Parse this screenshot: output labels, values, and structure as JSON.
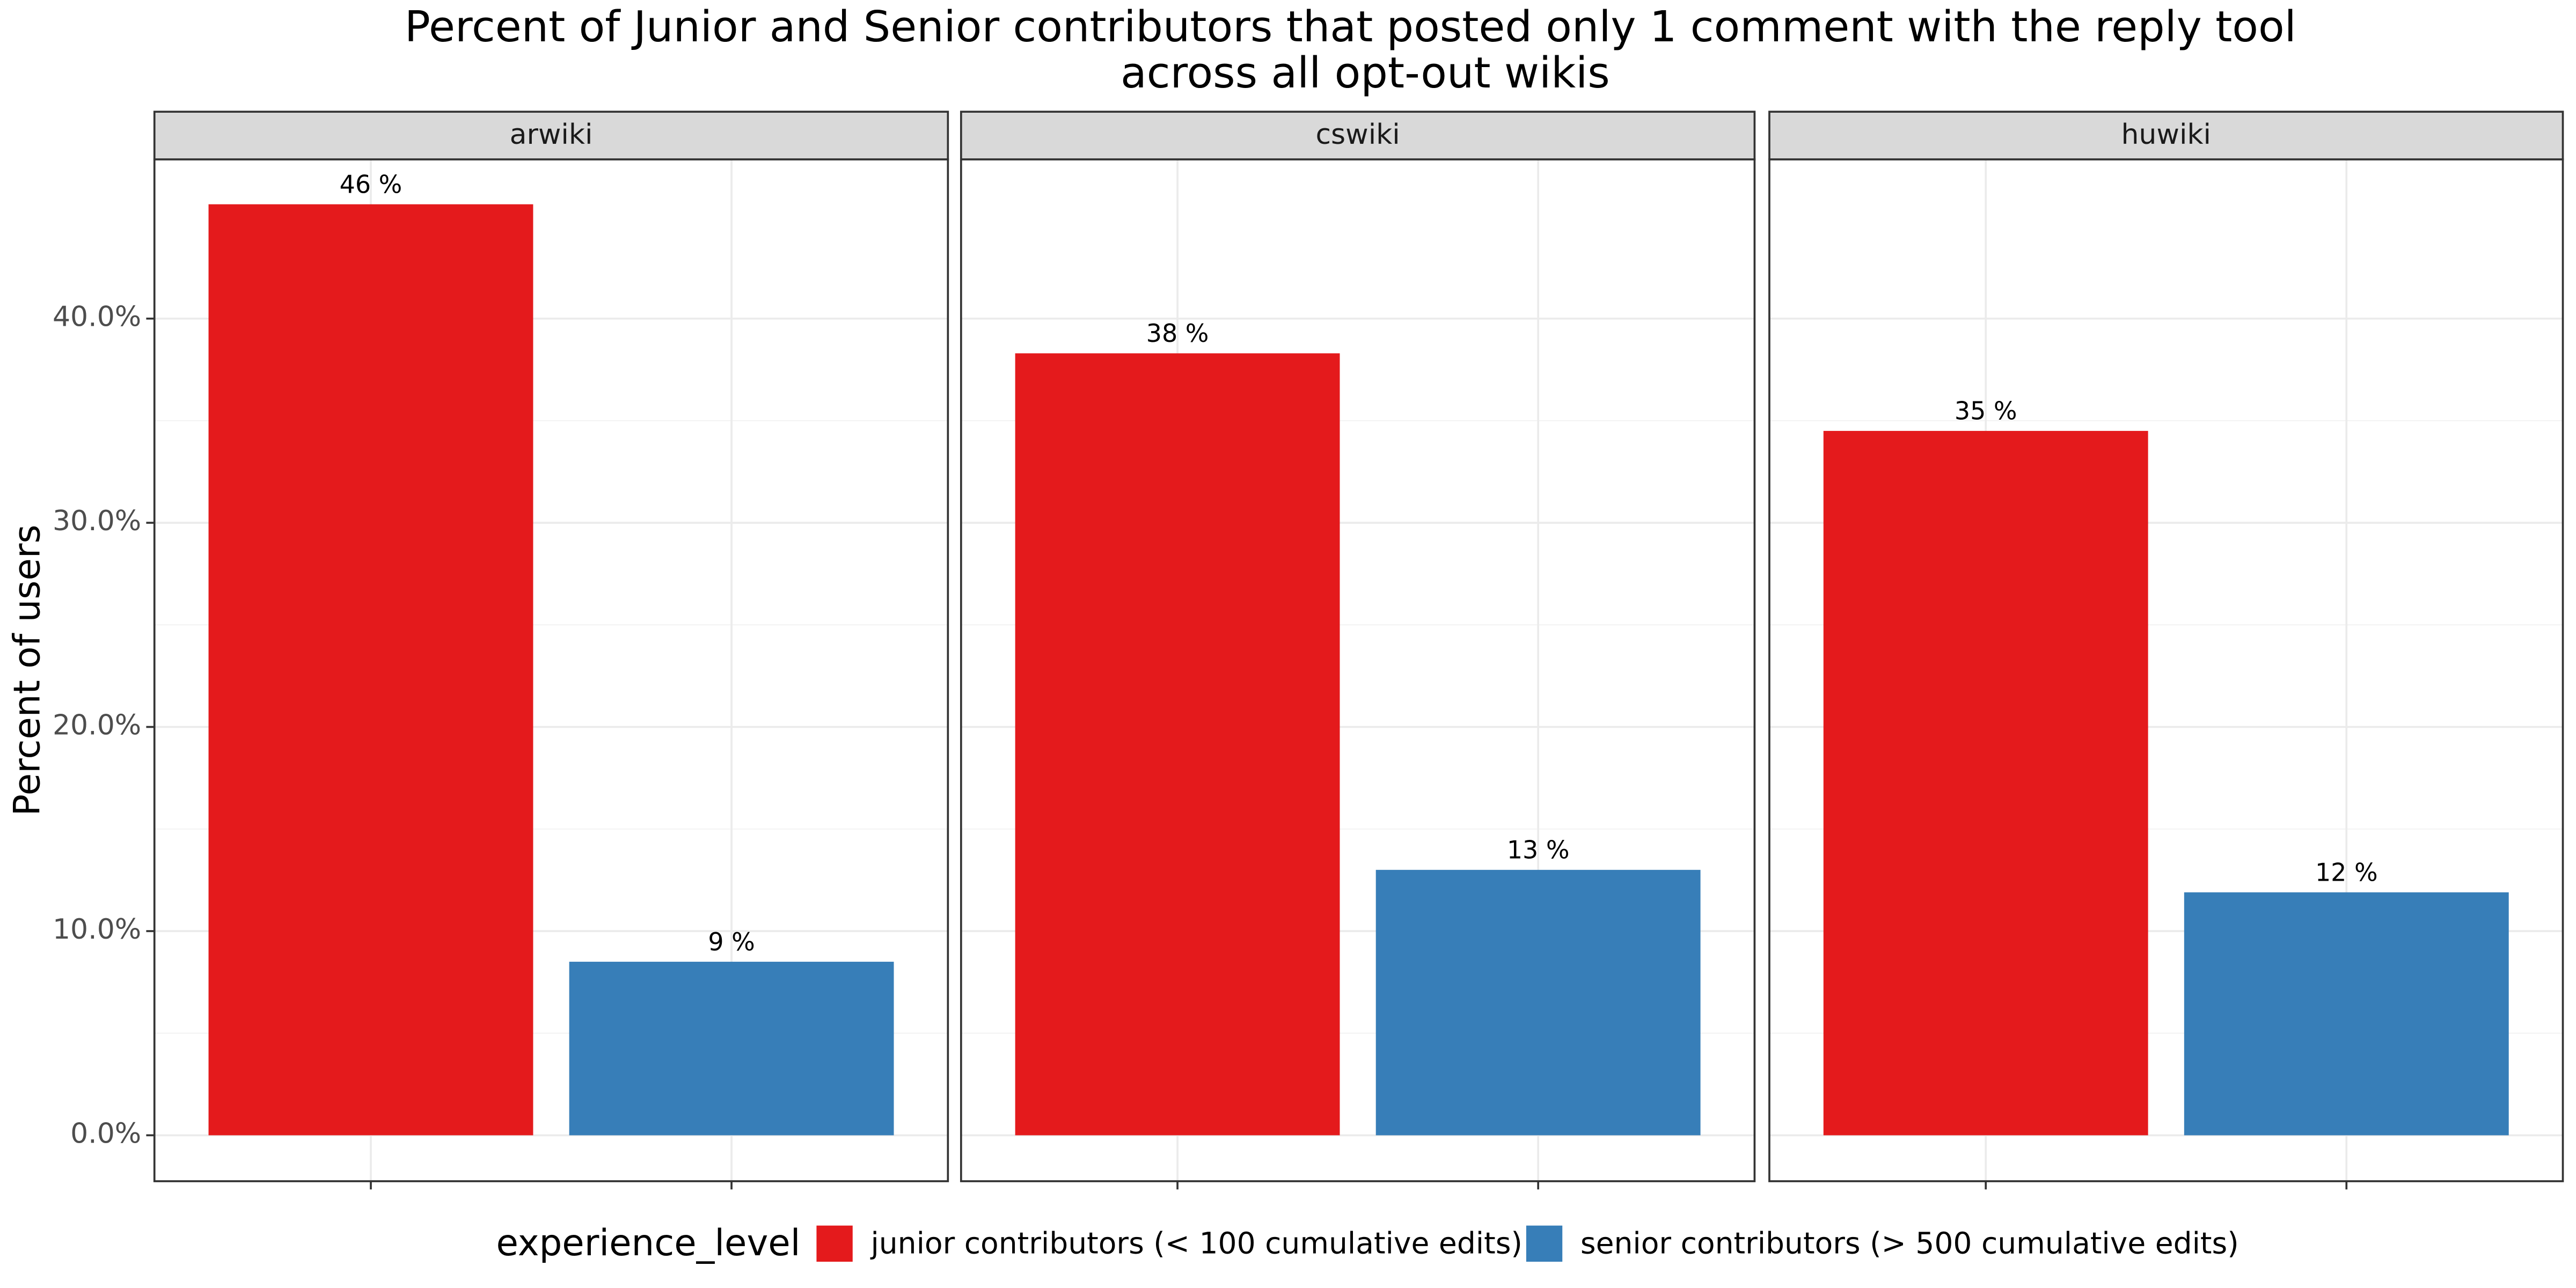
{
  "chart_data": {
    "type": "bar",
    "title": [
      "Percent of Junior and Senior contributors that posted only 1 comment with the reply tool",
      "across all opt-out wikis"
    ],
    "y_label": "Percent of users",
    "facets": [
      "arwiki",
      "cswiki",
      "huwiki"
    ],
    "legend_title": "experience_level",
    "legend": "bottom",
    "grid": true,
    "series": [
      {
        "name": "junior contributors (< 100 cumulative edits)",
        "color": "#e41a1c",
        "values": [
          45.6,
          38.3,
          34.5
        ],
        "value_labels": [
          "46 %",
          "38 %",
          "35 %"
        ]
      },
      {
        "name": "senior contributors (> 500 cumulative edits)",
        "color": "#377eb8",
        "values": [
          8.5,
          13.0,
          11.9
        ],
        "value_labels": [
          "9 %",
          "13 %",
          "12 %"
        ]
      }
    ],
    "ylim": [
      -2.25,
      47.8
    ],
    "yticks": [
      {
        "value": 0,
        "label": "0.0%"
      },
      {
        "value": 10,
        "label": "10.0%"
      },
      {
        "value": 20,
        "label": "20.0%"
      },
      {
        "value": 30,
        "label": "30.0%"
      },
      {
        "value": 40,
        "label": "40.0%"
      }
    ]
  }
}
